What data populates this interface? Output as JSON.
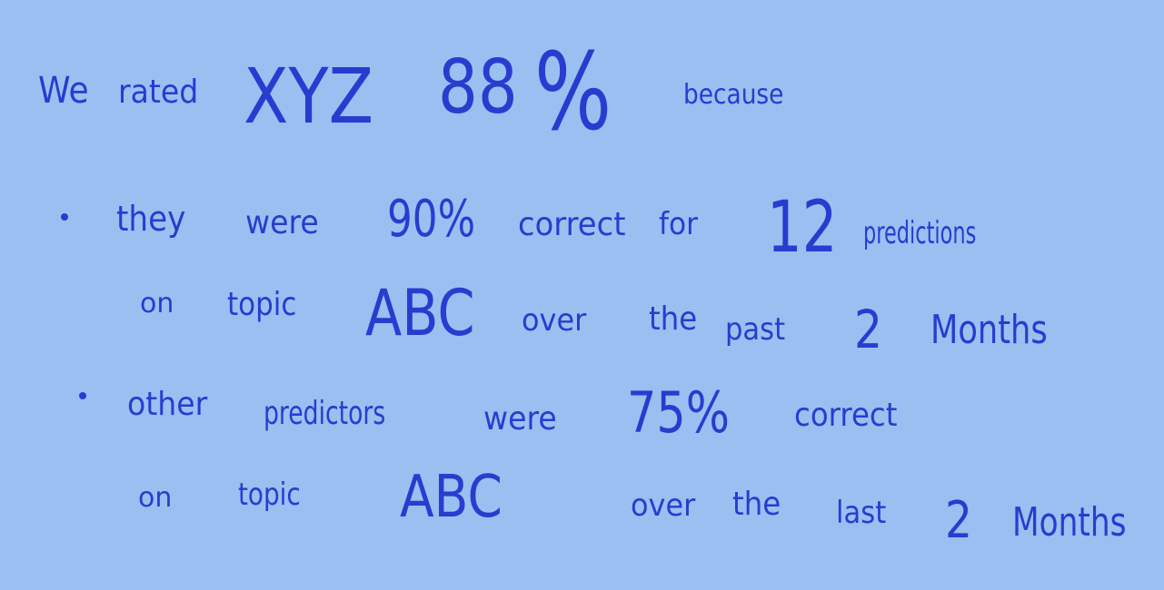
{
  "background_color": "#99c0f1",
  "ink_color": "#2a3bd0",
  "heading": {
    "w1": "We",
    "w2": "rated",
    "w3": "XYZ",
    "w4": "88",
    "w5": "%",
    "w6": "because"
  },
  "bullets": [
    {
      "line1": {
        "w1": "they",
        "w2": "were",
        "w3": "90%",
        "w4": "correct",
        "w5": "for",
        "w6": "12",
        "w7": "predictions"
      },
      "line2": {
        "w1": "on",
        "w2": "topic",
        "w3": "ABC",
        "w4": "over",
        "w5": "the",
        "w6": "past",
        "w7": "2",
        "w8": "Months"
      }
    },
    {
      "line1": {
        "w1": "other",
        "w2": "predictors",
        "w3": "were",
        "w4": "75%",
        "w5": "correct"
      },
      "line2": {
        "w1": "on",
        "w2": "topic",
        "w3": "ABC",
        "w4": "over",
        "w5": "the",
        "w6": "last",
        "w7": "2",
        "w8": "Months"
      }
    }
  ]
}
